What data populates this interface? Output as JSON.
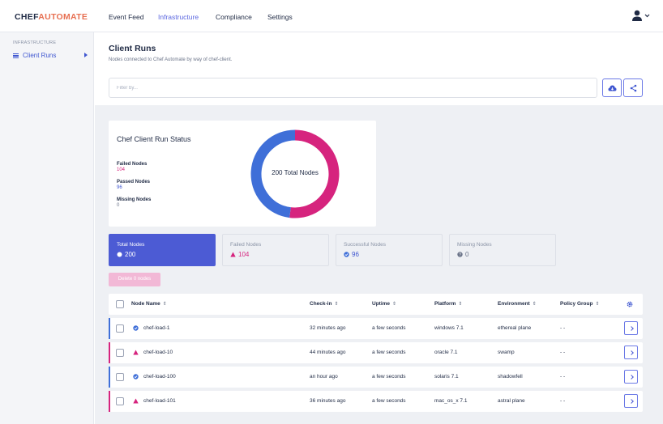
{
  "brand": {
    "part1": "CHEF",
    "part2": "AUTOMATE"
  },
  "nav": {
    "links": [
      "Event Feed",
      "Infrastructure",
      "Compliance",
      "Settings"
    ]
  },
  "sidebar": {
    "heading": "INFRASTRUCTURE",
    "item": "Client Runs"
  },
  "page": {
    "title": "Client Runs",
    "subtitle": "Nodes connected to Chef Automate by way of chef-client."
  },
  "filter": {
    "placeholder": "Filter by..."
  },
  "status_card": {
    "title": "Chef Client Run Status",
    "failed_label": "Failed Nodes",
    "failed_value": "104",
    "passed_label": "Passed Nodes",
    "passed_value": "96",
    "missing_label": "Missing Nodes",
    "missing_value": "0",
    "donut_center": "200 Total Nodes"
  },
  "chart_data": {
    "type": "pie",
    "categories": [
      "Failed Nodes",
      "Passed Nodes",
      "Missing Nodes"
    ],
    "values": [
      104,
      96,
      0
    ],
    "title": "Chef Client Run Status",
    "center_label": "200 Total Nodes"
  },
  "summary": [
    {
      "label": "Total Nodes",
      "value": "200"
    },
    {
      "label": "Failed Nodes",
      "value": "104"
    },
    {
      "label": "Successful Nodes",
      "value": "96"
    },
    {
      "label": "Missing Nodes",
      "value": "0"
    }
  ],
  "delete_button": "Delete 0 nodes",
  "table": {
    "headers": [
      "Node Name",
      "Check-in",
      "Uptime",
      "Platform",
      "Environment",
      "Policy Group"
    ],
    "rows": [
      {
        "status": "success",
        "name": "chef-load-1",
        "checkin": "32 minutes ago",
        "uptime": "a few seconds",
        "platform": "windows 7.1",
        "environment": "ethereal plane",
        "policy": "- -"
      },
      {
        "status": "failed",
        "name": "chef-load-10",
        "checkin": "44 minutes ago",
        "uptime": "a few seconds",
        "platform": "oracle 7.1",
        "environment": "swamp",
        "policy": "- -"
      },
      {
        "status": "success",
        "name": "chef-load-100",
        "checkin": "an hour ago",
        "uptime": "a few seconds",
        "platform": "solaris 7.1",
        "environment": "shadowfell",
        "policy": "- -"
      },
      {
        "status": "failed",
        "name": "chef-load-101",
        "checkin": "36 minutes ago",
        "uptime": "a few seconds",
        "platform": "mac_os_x 7.1",
        "environment": "astral plane",
        "policy": "- -"
      }
    ]
  },
  "colors": {
    "failed": "#d6247e",
    "success": "#3f6fd8",
    "accent": "#4c5bd4",
    "active_nav": "#5a66e0"
  }
}
